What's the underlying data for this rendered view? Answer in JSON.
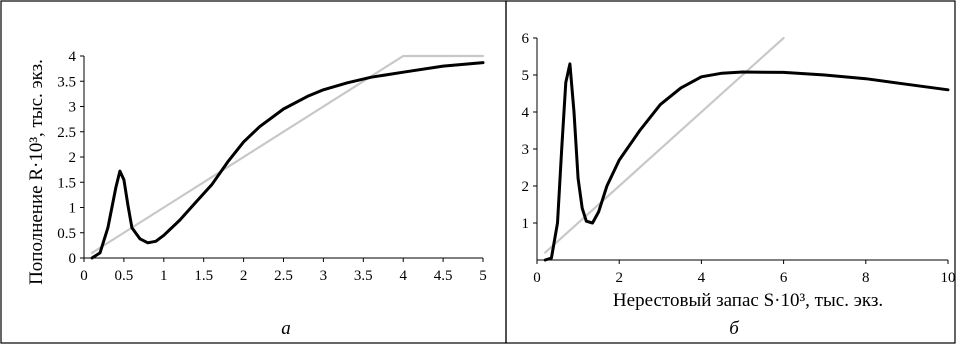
{
  "chart_data": [
    {
      "type": "line",
      "panel_label": "а",
      "ylabel": "Пополнение R·10³, тыс. экз.",
      "xlim": [
        0,
        5
      ],
      "ylim": [
        0,
        4
      ],
      "xticks": [
        "0",
        "0.5",
        "1",
        "1.5",
        "2",
        "2.5",
        "3",
        "3.5",
        "4",
        "4.5",
        "5"
      ],
      "yticks": [
        "0",
        "0.5",
        "1",
        "1.5",
        "2",
        "2.5",
        "3",
        "3.5",
        "4"
      ],
      "series": [
        {
          "color": "#000000",
          "x": [
            0.1,
            0.2,
            0.3,
            0.4,
            0.45,
            0.5,
            0.55,
            0.6,
            0.7,
            0.8,
            0.9,
            1.0,
            1.2,
            1.4,
            1.6,
            1.8,
            2.0,
            2.2,
            2.5,
            2.8,
            3.0,
            3.3,
            3.6,
            4.0,
            4.5,
            5.0
          ],
          "y": [
            0.0,
            0.1,
            0.6,
            1.4,
            1.72,
            1.55,
            1.05,
            0.6,
            0.38,
            0.3,
            0.33,
            0.45,
            0.75,
            1.1,
            1.45,
            1.9,
            2.3,
            2.6,
            2.95,
            3.2,
            3.33,
            3.47,
            3.58,
            3.68,
            3.8,
            3.87
          ]
        },
        {
          "color": "#c8c8c8",
          "x": [
            0.1,
            4.0,
            5.0
          ],
          "y": [
            0.1,
            4.0,
            4.0
          ]
        }
      ]
    },
    {
      "type": "line",
      "panel_label": "б",
      "xlabel": "Нерестовый запас S·10³, тыс. экз.",
      "xlim": [
        0,
        10
      ],
      "ylim": [
        0,
        6
      ],
      "xticks": [
        "0",
        "2",
        "4",
        "6",
        "8",
        "10"
      ],
      "yticks": [
        "1",
        "2",
        "3",
        "4",
        "5",
        "6"
      ],
      "series": [
        {
          "color": "#000000",
          "x": [
            0.2,
            0.35,
            0.5,
            0.6,
            0.7,
            0.8,
            0.9,
            1.0,
            1.1,
            1.2,
            1.35,
            1.5,
            1.7,
            2.0,
            2.5,
            3.0,
            3.5,
            4.0,
            4.5,
            5.0,
            6.0,
            7.0,
            8.0,
            9.0,
            10.0
          ],
          "y": [
            0.0,
            0.05,
            1.0,
            3.0,
            4.8,
            5.3,
            4.0,
            2.2,
            1.4,
            1.05,
            1.0,
            1.3,
            2.0,
            2.7,
            3.5,
            4.2,
            4.65,
            4.95,
            5.05,
            5.08,
            5.07,
            5.0,
            4.9,
            4.75,
            4.6
          ]
        },
        {
          "color": "#c8c8c8",
          "x": [
            0.2,
            6.0
          ],
          "y": [
            0.2,
            6.0
          ]
        }
      ]
    }
  ]
}
